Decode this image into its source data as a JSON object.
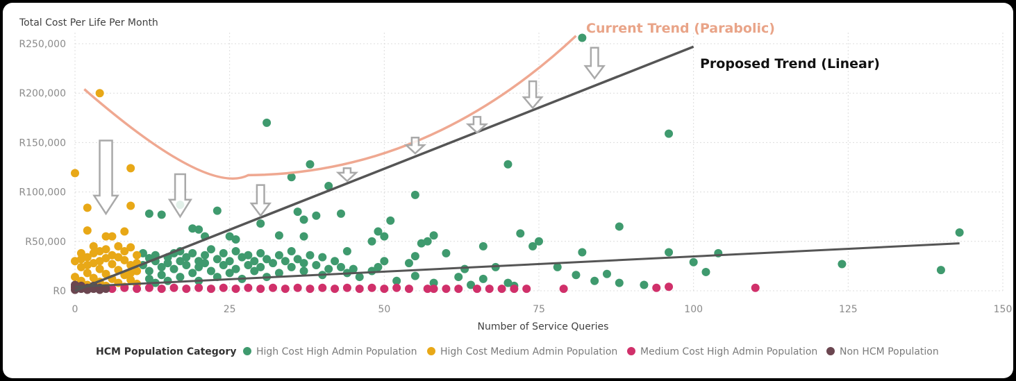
{
  "chart_data": {
    "type": "scatter",
    "ylabel": "Total Cost Per Life Per Month",
    "xlabel": "Number of Service Queries",
    "xlim": [
      0,
      150
    ],
    "ylim": [
      0,
      260000
    ],
    "x_ticks": [
      0,
      25,
      50,
      75,
      100,
      125,
      150
    ],
    "x_tick_labels": [
      "0",
      "25",
      "50",
      "75",
      "100",
      "125",
      "150"
    ],
    "y_ticks": [
      0,
      50000,
      100000,
      150000,
      200000,
      250000
    ],
    "y_tick_labels": [
      "R0",
      "R50,000",
      "R100,000",
      "R150,000",
      "R200,000",
      "R250,000"
    ],
    "grid": true,
    "legend": {
      "title": "HCM Population Category",
      "placement": "bottom-left"
    },
    "series": [
      {
        "name": "High Cost High Admin Population",
        "color": "#3F9A6E",
        "points": [
          [
            11,
            38000
          ],
          [
            11,
            26000
          ],
          [
            12,
            33000
          ],
          [
            12,
            20000
          ],
          [
            12,
            12000
          ],
          [
            13,
            30000
          ],
          [
            13,
            36000
          ],
          [
            13,
            8000
          ],
          [
            14,
            24000
          ],
          [
            14,
            16000
          ],
          [
            15,
            34000
          ],
          [
            15,
            28000
          ],
          [
            15,
            10000
          ],
          [
            16,
            38000
          ],
          [
            16,
            22000
          ],
          [
            17,
            40000
          ],
          [
            17,
            30000
          ],
          [
            17,
            14000
          ],
          [
            18,
            26000
          ],
          [
            18,
            34000
          ],
          [
            19,
            38000
          ],
          [
            19,
            18000
          ],
          [
            20,
            30000
          ],
          [
            20,
            24000
          ],
          [
            20,
            10000
          ],
          [
            21,
            36000
          ],
          [
            21,
            28000
          ],
          [
            22,
            42000
          ],
          [
            22,
            20000
          ],
          [
            23,
            32000
          ],
          [
            23,
            14000
          ],
          [
            24,
            26000
          ],
          [
            24,
            38000
          ],
          [
            25,
            30000
          ],
          [
            25,
            18000
          ],
          [
            26,
            40000
          ],
          [
            26,
            22000
          ],
          [
            27,
            34000
          ],
          [
            27,
            12000
          ],
          [
            28,
            26000
          ],
          [
            28,
            36000
          ],
          [
            29,
            30000
          ],
          [
            29,
            20000
          ],
          [
            30,
            38000
          ],
          [
            30,
            24000
          ],
          [
            31,
            32000
          ],
          [
            31,
            14000
          ],
          [
            32,
            28000
          ],
          [
            33,
            36000
          ],
          [
            33,
            18000
          ],
          [
            34,
            30000
          ],
          [
            35,
            24000
          ],
          [
            35,
            40000
          ],
          [
            36,
            32000
          ],
          [
            37,
            20000
          ],
          [
            37,
            28000
          ],
          [
            38,
            36000
          ],
          [
            39,
            26000
          ],
          [
            40,
            34000
          ],
          [
            40,
            16000
          ],
          [
            41,
            22000
          ],
          [
            42,
            30000
          ],
          [
            43,
            24000
          ],
          [
            44,
            18000
          ],
          [
            45,
            22000
          ],
          [
            46,
            14000
          ],
          [
            48,
            20000
          ],
          [
            49,
            24000
          ],
          [
            50,
            30000
          ],
          [
            12,
            78000
          ],
          [
            14,
            77000
          ],
          [
            17,
            87000
          ],
          [
            19,
            63000
          ],
          [
            20,
            62000
          ],
          [
            23,
            81000
          ],
          [
            21,
            55000
          ],
          [
            25,
            55000
          ],
          [
            26,
            52000
          ],
          [
            31,
            170000
          ],
          [
            30,
            68000
          ],
          [
            33,
            56000
          ],
          [
            35,
            115000
          ],
          [
            36,
            80000
          ],
          [
            37,
            72000
          ],
          [
            38,
            128000
          ],
          [
            39,
            76000
          ],
          [
            37,
            55000
          ],
          [
            41,
            106000
          ],
          [
            43,
            78000
          ],
          [
            44,
            40000
          ],
          [
            48,
            50000
          ],
          [
            49,
            60000
          ],
          [
            50,
            55000
          ],
          [
            51,
            71000
          ],
          [
            55,
            97000
          ],
          [
            56,
            48000
          ],
          [
            57,
            50000
          ],
          [
            58,
            56000
          ],
          [
            60,
            38000
          ],
          [
            63,
            22000
          ],
          [
            66,
            45000
          ],
          [
            68,
            24000
          ],
          [
            70,
            128000
          ],
          [
            72,
            58000
          ],
          [
            74,
            45000
          ],
          [
            75,
            50000
          ],
          [
            78,
            24000
          ],
          [
            81,
            16000
          ],
          [
            82,
            256000
          ],
          [
            82,
            39000
          ],
          [
            84,
            10000
          ],
          [
            86,
            17000
          ],
          [
            88,
            65000
          ],
          [
            88,
            8000
          ],
          [
            92,
            6000
          ],
          [
            96,
            159000
          ],
          [
            96,
            39000
          ],
          [
            100,
            29000
          ],
          [
            102,
            19000
          ],
          [
            104,
            38000
          ],
          [
            124,
            27000
          ],
          [
            140,
            21000
          ],
          [
            143,
            59000
          ],
          [
            52,
            10000
          ],
          [
            55,
            15000
          ],
          [
            58,
            8000
          ],
          [
            62,
            14000
          ],
          [
            64,
            6000
          ],
          [
            66,
            12000
          ],
          [
            70,
            8000
          ],
          [
            71,
            5000
          ],
          [
            55,
            35000
          ],
          [
            54,
            28000
          ]
        ]
      },
      {
        "name": "High Cost Medium Admin Population",
        "color": "#E8A817",
        "points": [
          [
            4,
            200000
          ],
          [
            0,
            119000
          ],
          [
            9,
            124000
          ],
          [
            2,
            84000
          ],
          [
            9,
            86000
          ],
          [
            2,
            61000
          ],
          [
            8,
            60000
          ],
          [
            5,
            55000
          ],
          [
            6,
            55000
          ],
          [
            3,
            45000
          ],
          [
            7,
            45000
          ],
          [
            9,
            44000
          ],
          [
            4,
            40000
          ],
          [
            1,
            38000
          ],
          [
            10,
            36000
          ],
          [
            2,
            34000
          ],
          [
            5,
            33000
          ],
          [
            8,
            31000
          ],
          [
            0,
            30000
          ],
          [
            3,
            28000
          ],
          [
            6,
            27000
          ],
          [
            9,
            26000
          ],
          [
            1,
            24000
          ],
          [
            4,
            22000
          ],
          [
            7,
            21000
          ],
          [
            10,
            20000
          ],
          [
            2,
            18000
          ],
          [
            5,
            17000
          ],
          [
            8,
            16000
          ],
          [
            0,
            14000
          ],
          [
            3,
            13000
          ],
          [
            6,
            12000
          ],
          [
            9,
            11000
          ],
          [
            1,
            10000
          ],
          [
            4,
            9000
          ],
          [
            7,
            8000
          ],
          [
            10,
            7000
          ],
          [
            2,
            6000
          ],
          [
            5,
            5000
          ],
          [
            8,
            4000
          ],
          [
            3,
            38000
          ],
          [
            6,
            36000
          ],
          [
            1,
            32000
          ],
          [
            10,
            28000
          ],
          [
            4,
            30000
          ],
          [
            7,
            34000
          ],
          [
            8,
            40000
          ],
          [
            5,
            42000
          ],
          [
            2,
            26000
          ],
          [
            9,
            18000
          ]
        ]
      },
      {
        "name": "Medium Cost High Admin Population",
        "color": "#D0306A",
        "points": [
          [
            0,
            3000
          ],
          [
            2,
            2000
          ],
          [
            4,
            3000
          ],
          [
            6,
            2000
          ],
          [
            8,
            3000
          ],
          [
            10,
            2000
          ],
          [
            12,
            3000
          ],
          [
            14,
            2000
          ],
          [
            16,
            3000
          ],
          [
            18,
            2000
          ],
          [
            20,
            3000
          ],
          [
            22,
            2000
          ],
          [
            24,
            3000
          ],
          [
            26,
            2000
          ],
          [
            28,
            3000
          ],
          [
            30,
            2000
          ],
          [
            32,
            3000
          ],
          [
            34,
            2000
          ],
          [
            36,
            3000
          ],
          [
            38,
            2000
          ],
          [
            40,
            3000
          ],
          [
            42,
            2000
          ],
          [
            44,
            3000
          ],
          [
            46,
            2000
          ],
          [
            48,
            3000
          ],
          [
            50,
            2000
          ],
          [
            52,
            3000
          ],
          [
            54,
            2000
          ],
          [
            57,
            2000
          ],
          [
            58,
            2000
          ],
          [
            60,
            2000
          ],
          [
            62,
            2000
          ],
          [
            65,
            2000
          ],
          [
            67,
            2000
          ],
          [
            69,
            2000
          ],
          [
            71,
            2000
          ],
          [
            73,
            2000
          ],
          [
            79,
            2000
          ],
          [
            94,
            3000
          ],
          [
            96,
            4000
          ],
          [
            110,
            3000
          ]
        ]
      },
      {
        "name": "Non HCM Population",
        "color": "#6B4650",
        "points": [
          [
            0,
            1000
          ],
          [
            0,
            4000
          ],
          [
            1,
            2000
          ],
          [
            1,
            5000
          ],
          [
            2,
            1000
          ],
          [
            2,
            3000
          ],
          [
            3,
            2000
          ],
          [
            3,
            5000
          ],
          [
            4,
            1000
          ],
          [
            4,
            3000
          ],
          [
            5,
            2000
          ],
          [
            0,
            6000
          ]
        ]
      }
    ],
    "annotations": [
      {
        "text": "Current Trend (Parabolic)",
        "color": "#E9A488"
      },
      {
        "text": "Proposed Trend (Linear)",
        "color": "#111111"
      }
    ],
    "trend_lines": [
      {
        "label": "proposed-trend",
        "from": [
          0,
          0
        ],
        "to": [
          100,
          247000
        ]
      },
      {
        "label": "fitted-trend",
        "from": [
          0,
          4000
        ],
        "to": [
          143,
          48000
        ]
      }
    ],
    "current_trend_curve": [
      [
        1.5,
        204000
      ],
      [
        28,
        117000
      ],
      [
        81,
        258000
      ]
    ],
    "arrows": [
      {
        "x": 5,
        "from": 152000,
        "to": 78000
      },
      {
        "x": 17,
        "from": 118000,
        "to": 75000
      },
      {
        "x": 30,
        "from": 107000,
        "to": 76000
      },
      {
        "x": 44,
        "from": 124000,
        "to": 111000
      },
      {
        "x": 55,
        "from": 155000,
        "to": 139000
      },
      {
        "x": 65,
        "from": 176000,
        "to": 160000
      },
      {
        "x": 74,
        "from": 212000,
        "to": 185000
      },
      {
        "x": 84,
        "from": 246000,
        "to": 215000
      }
    ]
  }
}
